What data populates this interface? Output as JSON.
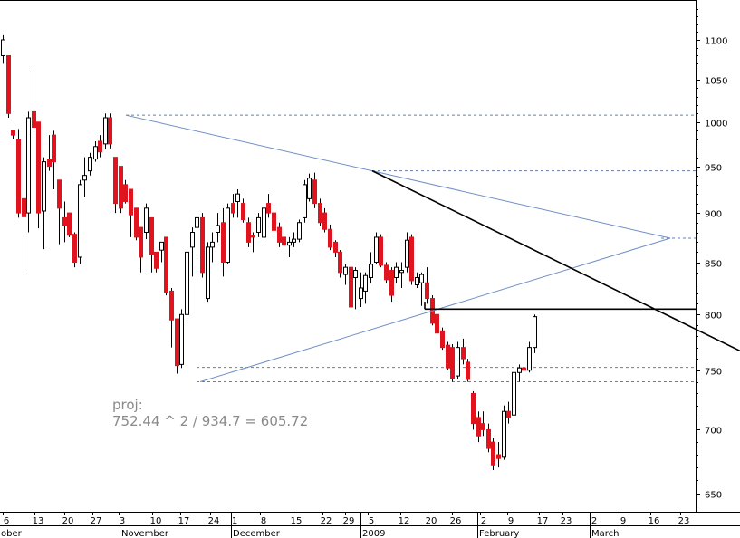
{
  "chart_data": {
    "type": "candlestick",
    "title": "",
    "xlabel": "",
    "ylabel": "",
    "y_scale": "log",
    "ylim": [
      638,
      1200
    ],
    "grid": false,
    "colors": {
      "up_body": "#ffffff",
      "down_body": "#e0141e",
      "wick": "#000000",
      "trendline_thin": "#6f8fc8",
      "trendline_thick": "#000000",
      "dashed_level": "#5f7fb8"
    },
    "y_ticks": [
      650,
      700,
      750,
      800,
      850,
      900,
      950,
      1000,
      1050,
      1100
    ],
    "x_day_ticks": [
      "6",
      "13",
      "20",
      "27",
      "3",
      "10",
      "17",
      "24",
      "1",
      "8",
      "15",
      "22",
      "29",
      "5",
      "12",
      "20",
      "26",
      "2",
      "9",
      "17",
      "23",
      "2",
      "9",
      "16",
      "23"
    ],
    "month_labels": [
      "ober",
      "November",
      "December",
      "2009",
      "February",
      "March"
    ],
    "annotation": {
      "line1": "proj:",
      "line2": "752.44 ^ 2 / 934.7 = 605.72"
    },
    "candles": [
      {
        "o": 1080,
        "h": 1106,
        "l": 1070,
        "c": 1100
      },
      {
        "o": 1080,
        "h": 1080,
        "l": 1005,
        "c": 1010
      },
      {
        "o": 990,
        "h": 990,
        "l": 980,
        "c": 985
      },
      {
        "o": 980,
        "h": 992,
        "l": 895,
        "c": 900
      },
      {
        "o": 915,
        "h": 915,
        "l": 840,
        "c": 896
      },
      {
        "o": 900,
        "h": 1012,
        "l": 880,
        "c": 1005
      },
      {
        "o": 1012,
        "h": 1065,
        "l": 985,
        "c": 994
      },
      {
        "o": 1000,
        "h": 1000,
        "l": 884,
        "c": 900
      },
      {
        "o": 902,
        "h": 960,
        "l": 863,
        "c": 955
      },
      {
        "o": 958,
        "h": 985,
        "l": 945,
        "c": 950
      },
      {
        "o": 985,
        "h": 990,
        "l": 925,
        "c": 955
      },
      {
        "o": 935,
        "h": 935,
        "l": 868,
        "c": 905
      },
      {
        "o": 895,
        "h": 912,
        "l": 870,
        "c": 887
      },
      {
        "o": 900,
        "h": 900,
        "l": 875,
        "c": 877
      },
      {
        "o": 878,
        "h": 880,
        "l": 845,
        "c": 850
      },
      {
        "o": 855,
        "h": 935,
        "l": 848,
        "c": 930
      },
      {
        "o": 935,
        "h": 960,
        "l": 917,
        "c": 940
      },
      {
        "o": 945,
        "h": 965,
        "l": 940,
        "c": 960
      },
      {
        "o": 958,
        "h": 978,
        "l": 955,
        "c": 972
      },
      {
        "o": 978,
        "h": 985,
        "l": 960,
        "c": 966
      },
      {
        "o": 975,
        "h": 1010,
        "l": 969,
        "c": 1005
      },
      {
        "o": 1005,
        "h": 1010,
        "l": 970,
        "c": 975
      },
      {
        "o": 960,
        "h": 960,
        "l": 900,
        "c": 910
      },
      {
        "o": 950,
        "h": 950,
        "l": 900,
        "c": 905
      },
      {
        "o": 930,
        "h": 935,
        "l": 910,
        "c": 912
      },
      {
        "o": 925,
        "h": 925,
        "l": 875,
        "c": 898
      },
      {
        "o": 905,
        "h": 905,
        "l": 872,
        "c": 875
      },
      {
        "o": 885,
        "h": 885,
        "l": 840,
        "c": 855
      },
      {
        "o": 880,
        "h": 910,
        "l": 873,
        "c": 905
      },
      {
        "o": 895,
        "h": 895,
        "l": 840,
        "c": 858
      },
      {
        "o": 860,
        "h": 860,
        "l": 840,
        "c": 844
      },
      {
        "o": 862,
        "h": 870,
        "l": 850,
        "c": 870
      },
      {
        "o": 875,
        "h": 875,
        "l": 818,
        "c": 821
      },
      {
        "o": 822,
        "h": 825,
        "l": 770,
        "c": 795
      },
      {
        "o": 796,
        "h": 796,
        "l": 747,
        "c": 754
      },
      {
        "o": 755,
        "h": 805,
        "l": 752,
        "c": 800
      },
      {
        "o": 800,
        "h": 865,
        "l": 795,
        "c": 860
      },
      {
        "o": 865,
        "h": 885,
        "l": 836,
        "c": 880
      },
      {
        "o": 885,
        "h": 900,
        "l": 858,
        "c": 895
      },
      {
        "o": 895,
        "h": 900,
        "l": 835,
        "c": 840
      },
      {
        "o": 815,
        "h": 870,
        "l": 812,
        "c": 865
      },
      {
        "o": 865,
        "h": 880,
        "l": 850,
        "c": 870
      },
      {
        "o": 880,
        "h": 900,
        "l": 870,
        "c": 887
      },
      {
        "o": 890,
        "h": 905,
        "l": 836,
        "c": 850
      },
      {
        "o": 850,
        "h": 910,
        "l": 848,
        "c": 905
      },
      {
        "o": 910,
        "h": 920,
        "l": 895,
        "c": 900
      },
      {
        "o": 912,
        "h": 925,
        "l": 895,
        "c": 920
      },
      {
        "o": 910,
        "h": 915,
        "l": 890,
        "c": 893
      },
      {
        "o": 890,
        "h": 895,
        "l": 865,
        "c": 870
      },
      {
        "o": 877,
        "h": 880,
        "l": 860,
        "c": 875
      },
      {
        "o": 880,
        "h": 900,
        "l": 875,
        "c": 895
      },
      {
        "o": 875,
        "h": 910,
        "l": 870,
        "c": 905
      },
      {
        "o": 910,
        "h": 920,
        "l": 895,
        "c": 900
      },
      {
        "o": 900,
        "h": 905,
        "l": 880,
        "c": 882
      },
      {
        "o": 885,
        "h": 890,
        "l": 865,
        "c": 870
      },
      {
        "o": 875,
        "h": 878,
        "l": 860,
        "c": 867
      },
      {
        "o": 867,
        "h": 875,
        "l": 855,
        "c": 870
      },
      {
        "o": 870,
        "h": 880,
        "l": 865,
        "c": 873
      },
      {
        "o": 873,
        "h": 893,
        "l": 870,
        "c": 890
      },
      {
        "o": 895,
        "h": 935,
        "l": 890,
        "c": 930
      },
      {
        "o": 915,
        "h": 942,
        "l": 912,
        "c": 937
      },
      {
        "o": 935,
        "h": 943,
        "l": 905,
        "c": 910
      },
      {
        "o": 910,
        "h": 915,
        "l": 887,
        "c": 890
      },
      {
        "o": 900,
        "h": 905,
        "l": 880,
        "c": 883
      },
      {
        "o": 883,
        "h": 888,
        "l": 862,
        "c": 865
      },
      {
        "o": 870,
        "h": 872,
        "l": 855,
        "c": 860
      },
      {
        "o": 860,
        "h": 862,
        "l": 835,
        "c": 840
      },
      {
        "o": 838,
        "h": 848,
        "l": 828,
        "c": 845
      },
      {
        "o": 845,
        "h": 850,
        "l": 805,
        "c": 807
      },
      {
        "o": 835,
        "h": 845,
        "l": 805,
        "c": 842
      },
      {
        "o": 815,
        "h": 840,
        "l": 807,
        "c": 825
      },
      {
        "o": 822,
        "h": 840,
        "l": 810,
        "c": 837
      },
      {
        "o": 835,
        "h": 860,
        "l": 830,
        "c": 848
      },
      {
        "o": 850,
        "h": 880,
        "l": 848,
        "c": 875
      },
      {
        "o": 875,
        "h": 878,
        "l": 845,
        "c": 847
      },
      {
        "o": 847,
        "h": 850,
        "l": 830,
        "c": 833
      },
      {
        "o": 842,
        "h": 845,
        "l": 812,
        "c": 818
      },
      {
        "o": 835,
        "h": 850,
        "l": 830,
        "c": 845
      },
      {
        "o": 840,
        "h": 850,
        "l": 825,
        "c": 842
      },
      {
        "o": 845,
        "h": 880,
        "l": 840,
        "c": 872
      },
      {
        "o": 875,
        "h": 878,
        "l": 828,
        "c": 832
      },
      {
        "o": 828,
        "h": 840,
        "l": 825,
        "c": 835
      },
      {
        "o": 830,
        "h": 840,
        "l": 808,
        "c": 838
      },
      {
        "o": 830,
        "h": 845,
        "l": 810,
        "c": 815
      },
      {
        "o": 815,
        "h": 818,
        "l": 790,
        "c": 792
      },
      {
        "o": 800,
        "h": 805,
        "l": 780,
        "c": 783
      },
      {
        "o": 785,
        "h": 788,
        "l": 768,
        "c": 770
      },
      {
        "o": 772,
        "h": 775,
        "l": 750,
        "c": 752
      },
      {
        "o": 770,
        "h": 773,
        "l": 740,
        "c": 743
      },
      {
        "o": 745,
        "h": 775,
        "l": 742,
        "c": 770
      },
      {
        "o": 770,
        "h": 778,
        "l": 755,
        "c": 760
      },
      {
        "o": 757,
        "h": 760,
        "l": 740,
        "c": 742
      },
      {
        "o": 730,
        "h": 732,
        "l": 700,
        "c": 705
      },
      {
        "o": 710,
        "h": 715,
        "l": 690,
        "c": 695
      },
      {
        "o": 705,
        "h": 715,
        "l": 695,
        "c": 700
      },
      {
        "o": 700,
        "h": 705,
        "l": 682,
        "c": 685
      },
      {
        "o": 690,
        "h": 693,
        "l": 668,
        "c": 672
      },
      {
        "o": 680,
        "h": 690,
        "l": 670,
        "c": 677
      },
      {
        "o": 678,
        "h": 720,
        "l": 676,
        "c": 715
      },
      {
        "o": 715,
        "h": 723,
        "l": 705,
        "c": 710
      },
      {
        "o": 712,
        "h": 752,
        "l": 708,
        "c": 748
      },
      {
        "o": 748,
        "h": 755,
        "l": 740,
        "c": 752
      },
      {
        "o": 752,
        "h": 755,
        "l": 745,
        "c": 750
      },
      {
        "o": 750,
        "h": 775,
        "l": 748,
        "c": 770
      },
      {
        "o": 770,
        "h": 800,
        "l": 765,
        "c": 798
      }
    ]
  }
}
